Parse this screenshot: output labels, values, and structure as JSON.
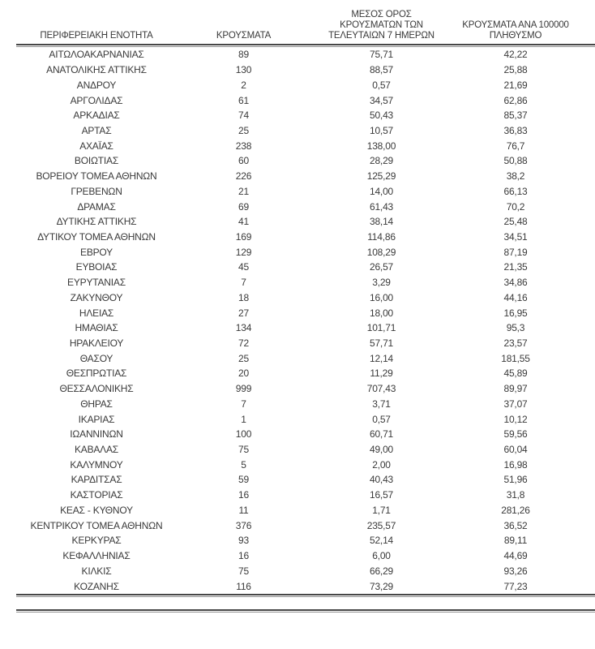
{
  "colors": {
    "background": "#ffffff",
    "text": "#3a3a3a",
    "rule_dark": "#474747",
    "rule_light": "#8f8f8f"
  },
  "table": {
    "columns": [
      {
        "id": "region",
        "label": "ΠΕΡΙΦΕΡΕΙΑΚΗ ΕΝΟΤΗΤΑ"
      },
      {
        "id": "cases",
        "label": "ΚΡΟΥΣΜΑΤΑ"
      },
      {
        "id": "avg_7day",
        "label": "ΜΕΣΟΣ ΟΡΟΣ\nΚΡΟΥΣΜΑΤΩΝ ΤΩΝ\nΤΕΛΕΥΤΑΙΩΝ 7 ΗΜΕΡΩΝ"
      },
      {
        "id": "per_100k",
        "label": "ΚΡΟΥΣΜΑΤΑ ΑΝΑ 100000\nΠΛΗΘΥΣΜΟ"
      }
    ],
    "rows": [
      {
        "region": "ΑΙΤΩΛΟΑΚΑΡΝΑΝΙΑΣ",
        "cases": "89",
        "avg_7day": "75,71",
        "per_100k": "42,22"
      },
      {
        "region": "ΑΝΑΤΟΛΙΚΗΣ ΑΤΤΙΚΗΣ",
        "cases": "130",
        "avg_7day": "88,57",
        "per_100k": "25,88"
      },
      {
        "region": "ΑΝΔΡΟΥ",
        "cases": "2",
        "avg_7day": "0,57",
        "per_100k": "21,69"
      },
      {
        "region": "ΑΡΓΟΛΙΔΑΣ",
        "cases": "61",
        "avg_7day": "34,57",
        "per_100k": "62,86"
      },
      {
        "region": "ΑΡΚΑΔΙΑΣ",
        "cases": "74",
        "avg_7day": "50,43",
        "per_100k": "85,37"
      },
      {
        "region": "ΑΡΤΑΣ",
        "cases": "25",
        "avg_7day": "10,57",
        "per_100k": "36,83"
      },
      {
        "region": "ΑΧΑΪΑΣ",
        "cases": "238",
        "avg_7day": "138,00",
        "per_100k": "76,7"
      },
      {
        "region": "ΒΟΙΩΤΙΑΣ",
        "cases": "60",
        "avg_7day": "28,29",
        "per_100k": "50,88"
      },
      {
        "region": "ΒΟΡΕΙΟΥ ΤΟΜΕΑ ΑΘΗΝΩΝ",
        "cases": "226",
        "avg_7day": "125,29",
        "per_100k": "38,2"
      },
      {
        "region": "ΓΡΕΒΕΝΩΝ",
        "cases": "21",
        "avg_7day": "14,00",
        "per_100k": "66,13"
      },
      {
        "region": "ΔΡΑΜΑΣ",
        "cases": "69",
        "avg_7day": "61,43",
        "per_100k": "70,2"
      },
      {
        "region": "ΔΥΤΙΚΗΣ ΑΤΤΙΚΗΣ",
        "cases": "41",
        "avg_7day": "38,14",
        "per_100k": "25,48"
      },
      {
        "region": "ΔΥΤΙΚΟΥ ΤΟΜΕΑ ΑΘΗΝΩΝ",
        "cases": "169",
        "avg_7day": "114,86",
        "per_100k": "34,51"
      },
      {
        "region": "ΕΒΡΟΥ",
        "cases": "129",
        "avg_7day": "108,29",
        "per_100k": "87,19"
      },
      {
        "region": "ΕΥΒΟΙΑΣ",
        "cases": "45",
        "avg_7day": "26,57",
        "per_100k": "21,35"
      },
      {
        "region": "ΕΥΡΥΤΑΝΙΑΣ",
        "cases": "7",
        "avg_7day": "3,29",
        "per_100k": "34,86"
      },
      {
        "region": "ΖΑΚΥΝΘΟΥ",
        "cases": "18",
        "avg_7day": "16,00",
        "per_100k": "44,16"
      },
      {
        "region": "ΗΛΕΙΑΣ",
        "cases": "27",
        "avg_7day": "18,00",
        "per_100k": "16,95"
      },
      {
        "region": "ΗΜΑΘΙΑΣ",
        "cases": "134",
        "avg_7day": "101,71",
        "per_100k": "95,3"
      },
      {
        "region": "ΗΡΑΚΛΕΙΟΥ",
        "cases": "72",
        "avg_7day": "57,71",
        "per_100k": "23,57"
      },
      {
        "region": "ΘΑΣΟΥ",
        "cases": "25",
        "avg_7day": "12,14",
        "per_100k": "181,55"
      },
      {
        "region": "ΘΕΣΠΡΩΤΙΑΣ",
        "cases": "20",
        "avg_7day": "11,29",
        "per_100k": "45,89"
      },
      {
        "region": "ΘΕΣΣΑΛΟΝΙΚΗΣ",
        "cases": "999",
        "avg_7day": "707,43",
        "per_100k": "89,97"
      },
      {
        "region": "ΘΗΡΑΣ",
        "cases": "7",
        "avg_7day": "3,71",
        "per_100k": "37,07"
      },
      {
        "region": "ΙΚΑΡΙΑΣ",
        "cases": "1",
        "avg_7day": "0,57",
        "per_100k": "10,12"
      },
      {
        "region": "ΙΩΑΝΝΙΝΩΝ",
        "cases": "100",
        "avg_7day": "60,71",
        "per_100k": "59,56"
      },
      {
        "region": "ΚΑΒΑΛΑΣ",
        "cases": "75",
        "avg_7day": "49,00",
        "per_100k": "60,04"
      },
      {
        "region": "ΚΑΛΥΜΝΟΥ",
        "cases": "5",
        "avg_7day": "2,00",
        "per_100k": "16,98"
      },
      {
        "region": "ΚΑΡΔΙΤΣΑΣ",
        "cases": "59",
        "avg_7day": "40,43",
        "per_100k": "51,96"
      },
      {
        "region": "ΚΑΣΤΟΡΙΑΣ",
        "cases": "16",
        "avg_7day": "16,57",
        "per_100k": "31,8"
      },
      {
        "region": "ΚΕΑΣ - ΚΥΘΝΟΥ",
        "cases": "11",
        "avg_7day": "1,71",
        "per_100k": "281,26"
      },
      {
        "region": "ΚΕΝΤΡΙΚΟΥ ΤΟΜΕΑ ΑΘΗΝΩΝ",
        "cases": "376",
        "avg_7day": "235,57",
        "per_100k": "36,52"
      },
      {
        "region": "ΚΕΡΚΥΡΑΣ",
        "cases": "93",
        "avg_7day": "52,14",
        "per_100k": "89,11"
      },
      {
        "region": "ΚΕΦΑΛΛΗΝΙΑΣ",
        "cases": "16",
        "avg_7day": "6,00",
        "per_100k": "44,69"
      },
      {
        "region": "ΚΙΛΚΙΣ",
        "cases": "75",
        "avg_7day": "66,29",
        "per_100k": "93,26"
      },
      {
        "region": "ΚΟΖΑΝΗΣ",
        "cases": "116",
        "avg_7day": "73,29",
        "per_100k": "77,23"
      }
    ]
  }
}
